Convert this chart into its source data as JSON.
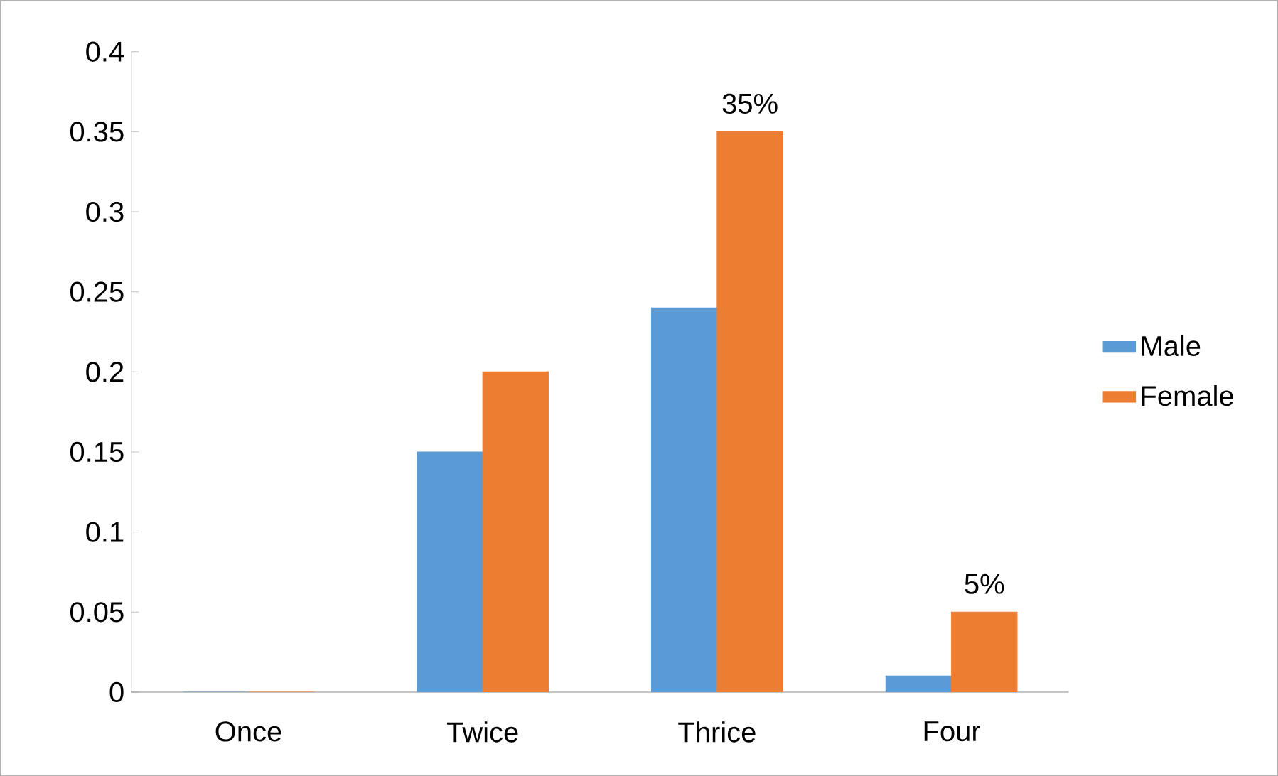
{
  "chart_data": {
    "type": "bar",
    "categories": [
      "Once",
      "Twice",
      "Thrice",
      "Four"
    ],
    "series": [
      {
        "name": "Male",
        "color": "#5b9bd5",
        "values": [
          0,
          0.15,
          0.24,
          0.01
        ]
      },
      {
        "name": "Female",
        "color": "#ed7d31",
        "values": [
          0,
          0.2,
          0.35,
          0.05
        ],
        "value_labels": [
          null,
          null,
          "35%",
          "5%"
        ]
      }
    ],
    "ylim": [
      0,
      0.4
    ],
    "yticks": [
      0,
      0.05,
      0.1,
      0.15,
      0.2,
      0.25,
      0.3,
      0.35,
      0.4
    ],
    "grid": false,
    "legend": "right"
  }
}
